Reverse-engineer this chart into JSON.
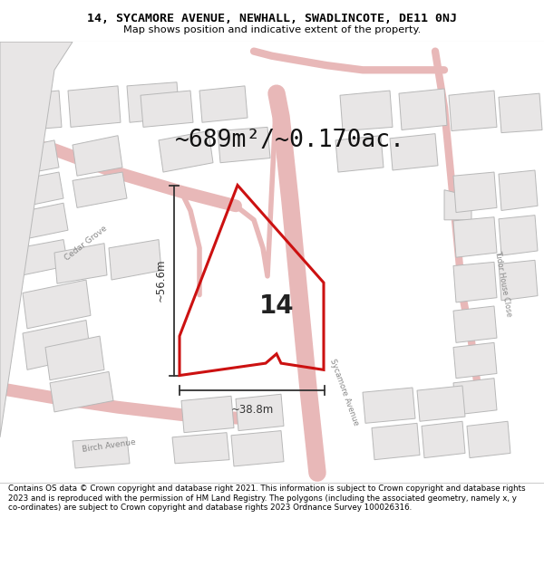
{
  "title": "14, SYCAMORE AVENUE, NEWHALL, SWADLINCOTE, DE11 0NJ",
  "subtitle": "Map shows position and indicative extent of the property.",
  "area_text": "~689m²/~0.170ac.",
  "label_14": "14",
  "dim_width": "~38.8m",
  "dim_height": "~56.6m",
  "footer": "Contains OS data © Crown copyright and database right 2021. This information is subject to Crown copyright and database rights 2023 and is reproduced with the permission of HM Land Registry. The polygons (including the associated geometry, namely x, y co-ordinates) are subject to Crown copyright and database rights 2023 Ordnance Survey 100026316.",
  "map_bg": "#f7f5f5",
  "building_fill": "#e8e6e6",
  "building_edge": "#b8b8b8",
  "road_fill": "#f0d8d8",
  "road_edge": "#e8b8b8",
  "highlight_color": "#cc1111",
  "footer_bg": "#ffffff",
  "title_bg": "#ffffff",
  "street_label_color": "#888888",
  "dim_color": "#333333",
  "plot_label_color": "#222222"
}
